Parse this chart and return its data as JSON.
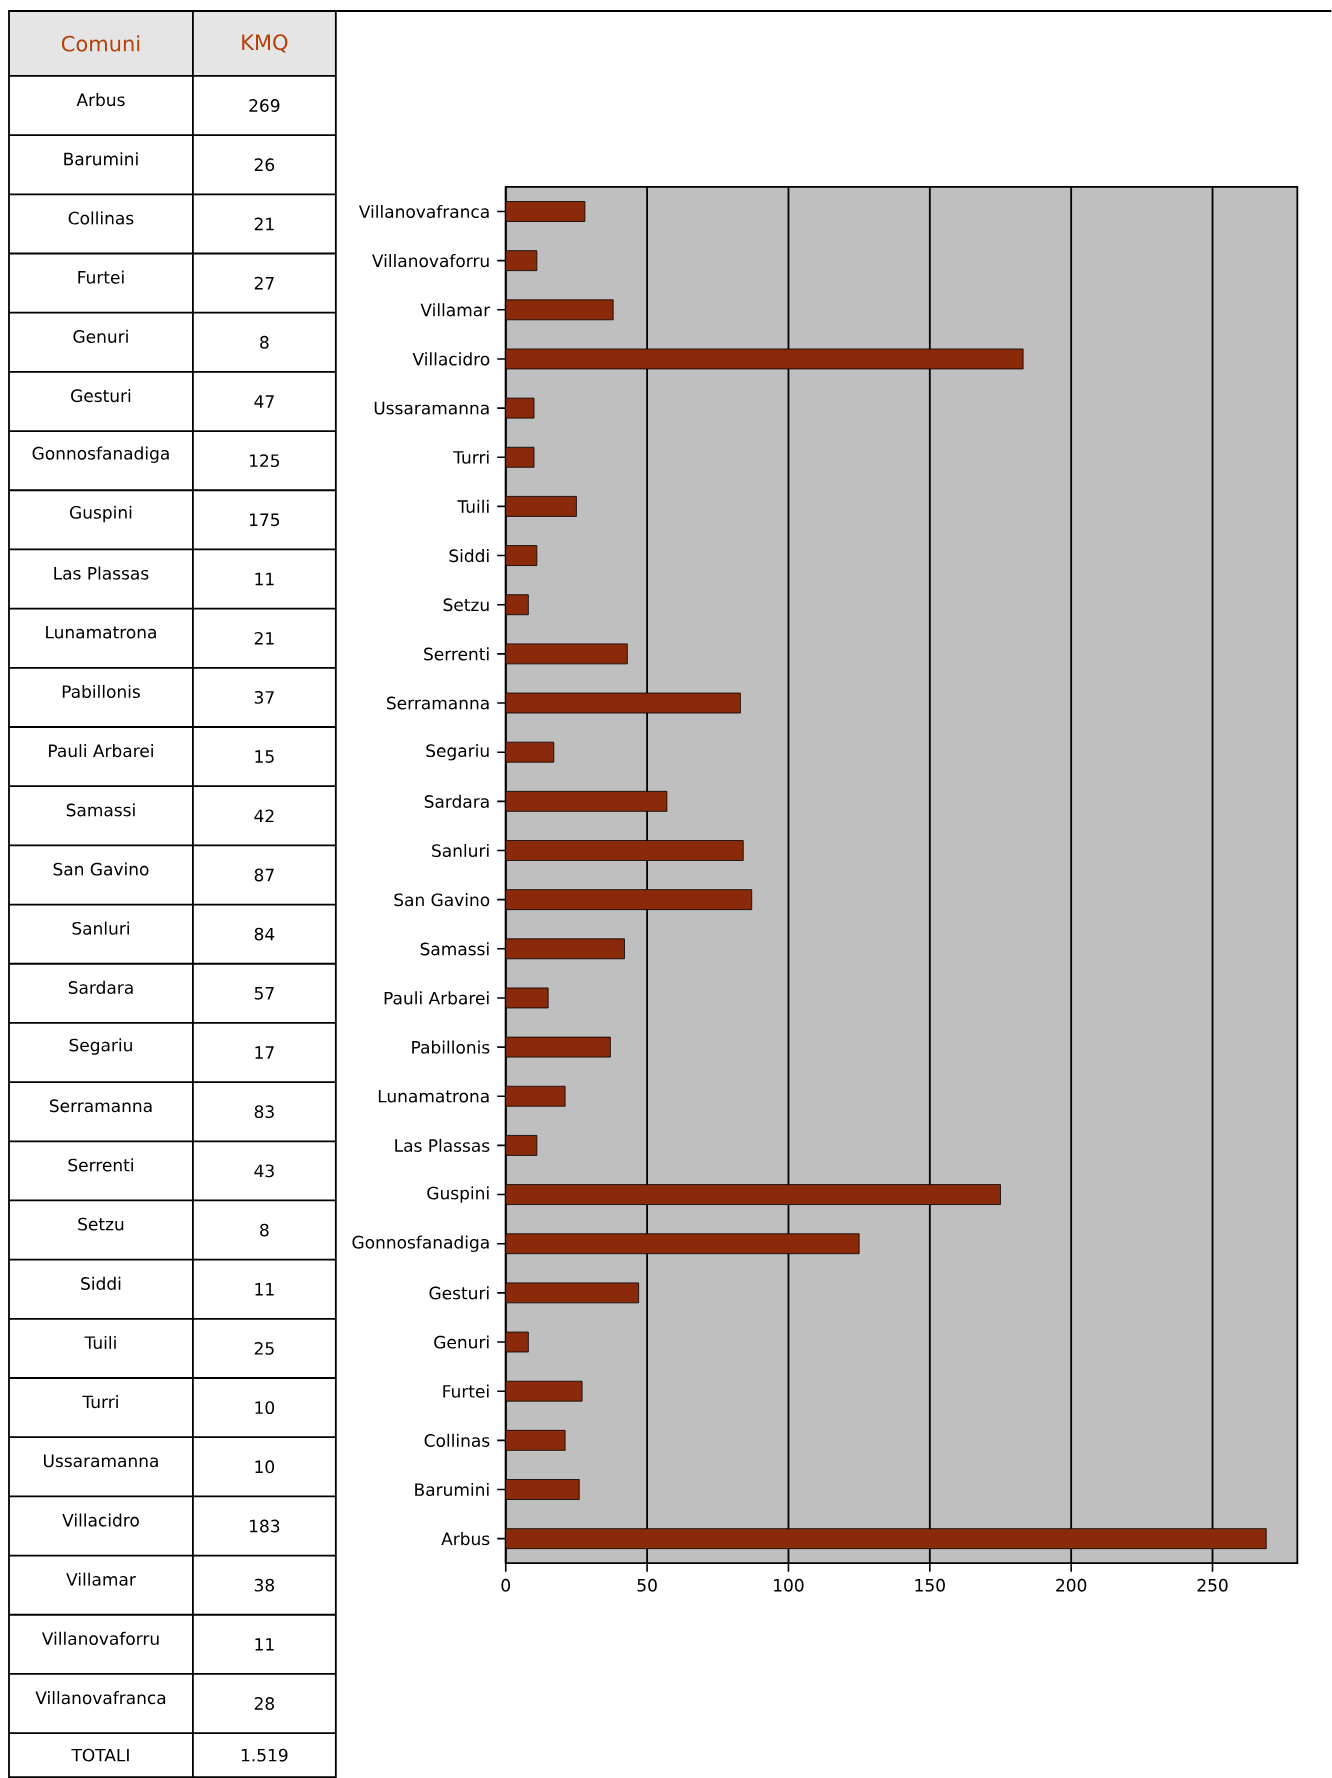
{
  "chart_data": [
    {
      "type": "other",
      "categories": [
        "Arbus",
        "Barumini",
        "Collinas",
        "Furtei",
        "Genuri",
        "Gesturi",
        "Gonnosfanadiga",
        "Guspini",
        "Las Plassas",
        "Lunamatrona",
        "Pabillonis",
        "Pauli Arbarei",
        "Samassi",
        "San Gavino",
        "Sanluri",
        "Sardara",
        "Segariu",
        "Serramanna",
        "Serrenti",
        "Setzu",
        "Siddi",
        "Tuili",
        "Turri",
        "Ussaramanna",
        "Villacidro",
        "Villamar",
        "Villanovaforru",
        "Villanovafranca"
      ],
      "values": [
        269,
        26,
        21,
        27,
        8,
        47,
        125,
        175,
        11,
        21,
        37,
        15,
        42,
        87,
        84,
        57,
        17,
        83,
        43,
        8,
        11,
        25,
        10,
        10,
        183,
        38,
        11,
        28
      ],
      "data_labels": true,
      "annotations": [
        "Comuni",
        "KMQ",
        "TOTALI",
        "1.519"
      ]
    },
    {
      "type": "bar",
      "orientation": "horizontal",
      "categories": [
        "Villanovafranca",
        "Villanovaforru",
        "Villamar",
        "Villacidro",
        "Ussaramanna",
        "Turri",
        "Tuili",
        "Siddi",
        "Setzu",
        "Serrenti",
        "Serramanna",
        "Segariu",
        "Sardara",
        "Sanluri",
        "San Gavino",
        "Samassi",
        "Pauli Arbarei",
        "Pabillonis",
        "Lunamatrona",
        "Las Plassas",
        "Guspini",
        "Gonnosfanadiga",
        "Gesturi",
        "Genuri",
        "Furtei",
        "Collinas",
        "Barumini",
        "Arbus"
      ],
      "values": [
        28,
        11,
        38,
        183,
        10,
        10,
        25,
        11,
        8,
        43,
        83,
        17,
        57,
        84,
        87,
        42,
        15,
        37,
        21,
        11,
        175,
        125,
        47,
        8,
        27,
        21,
        26,
        269
      ],
      "color": "#8b2a0a",
      "xlim": [
        0,
        280
      ],
      "xticks": [
        0,
        50,
        100,
        150,
        200,
        250
      ],
      "grid": "x"
    }
  ]
}
